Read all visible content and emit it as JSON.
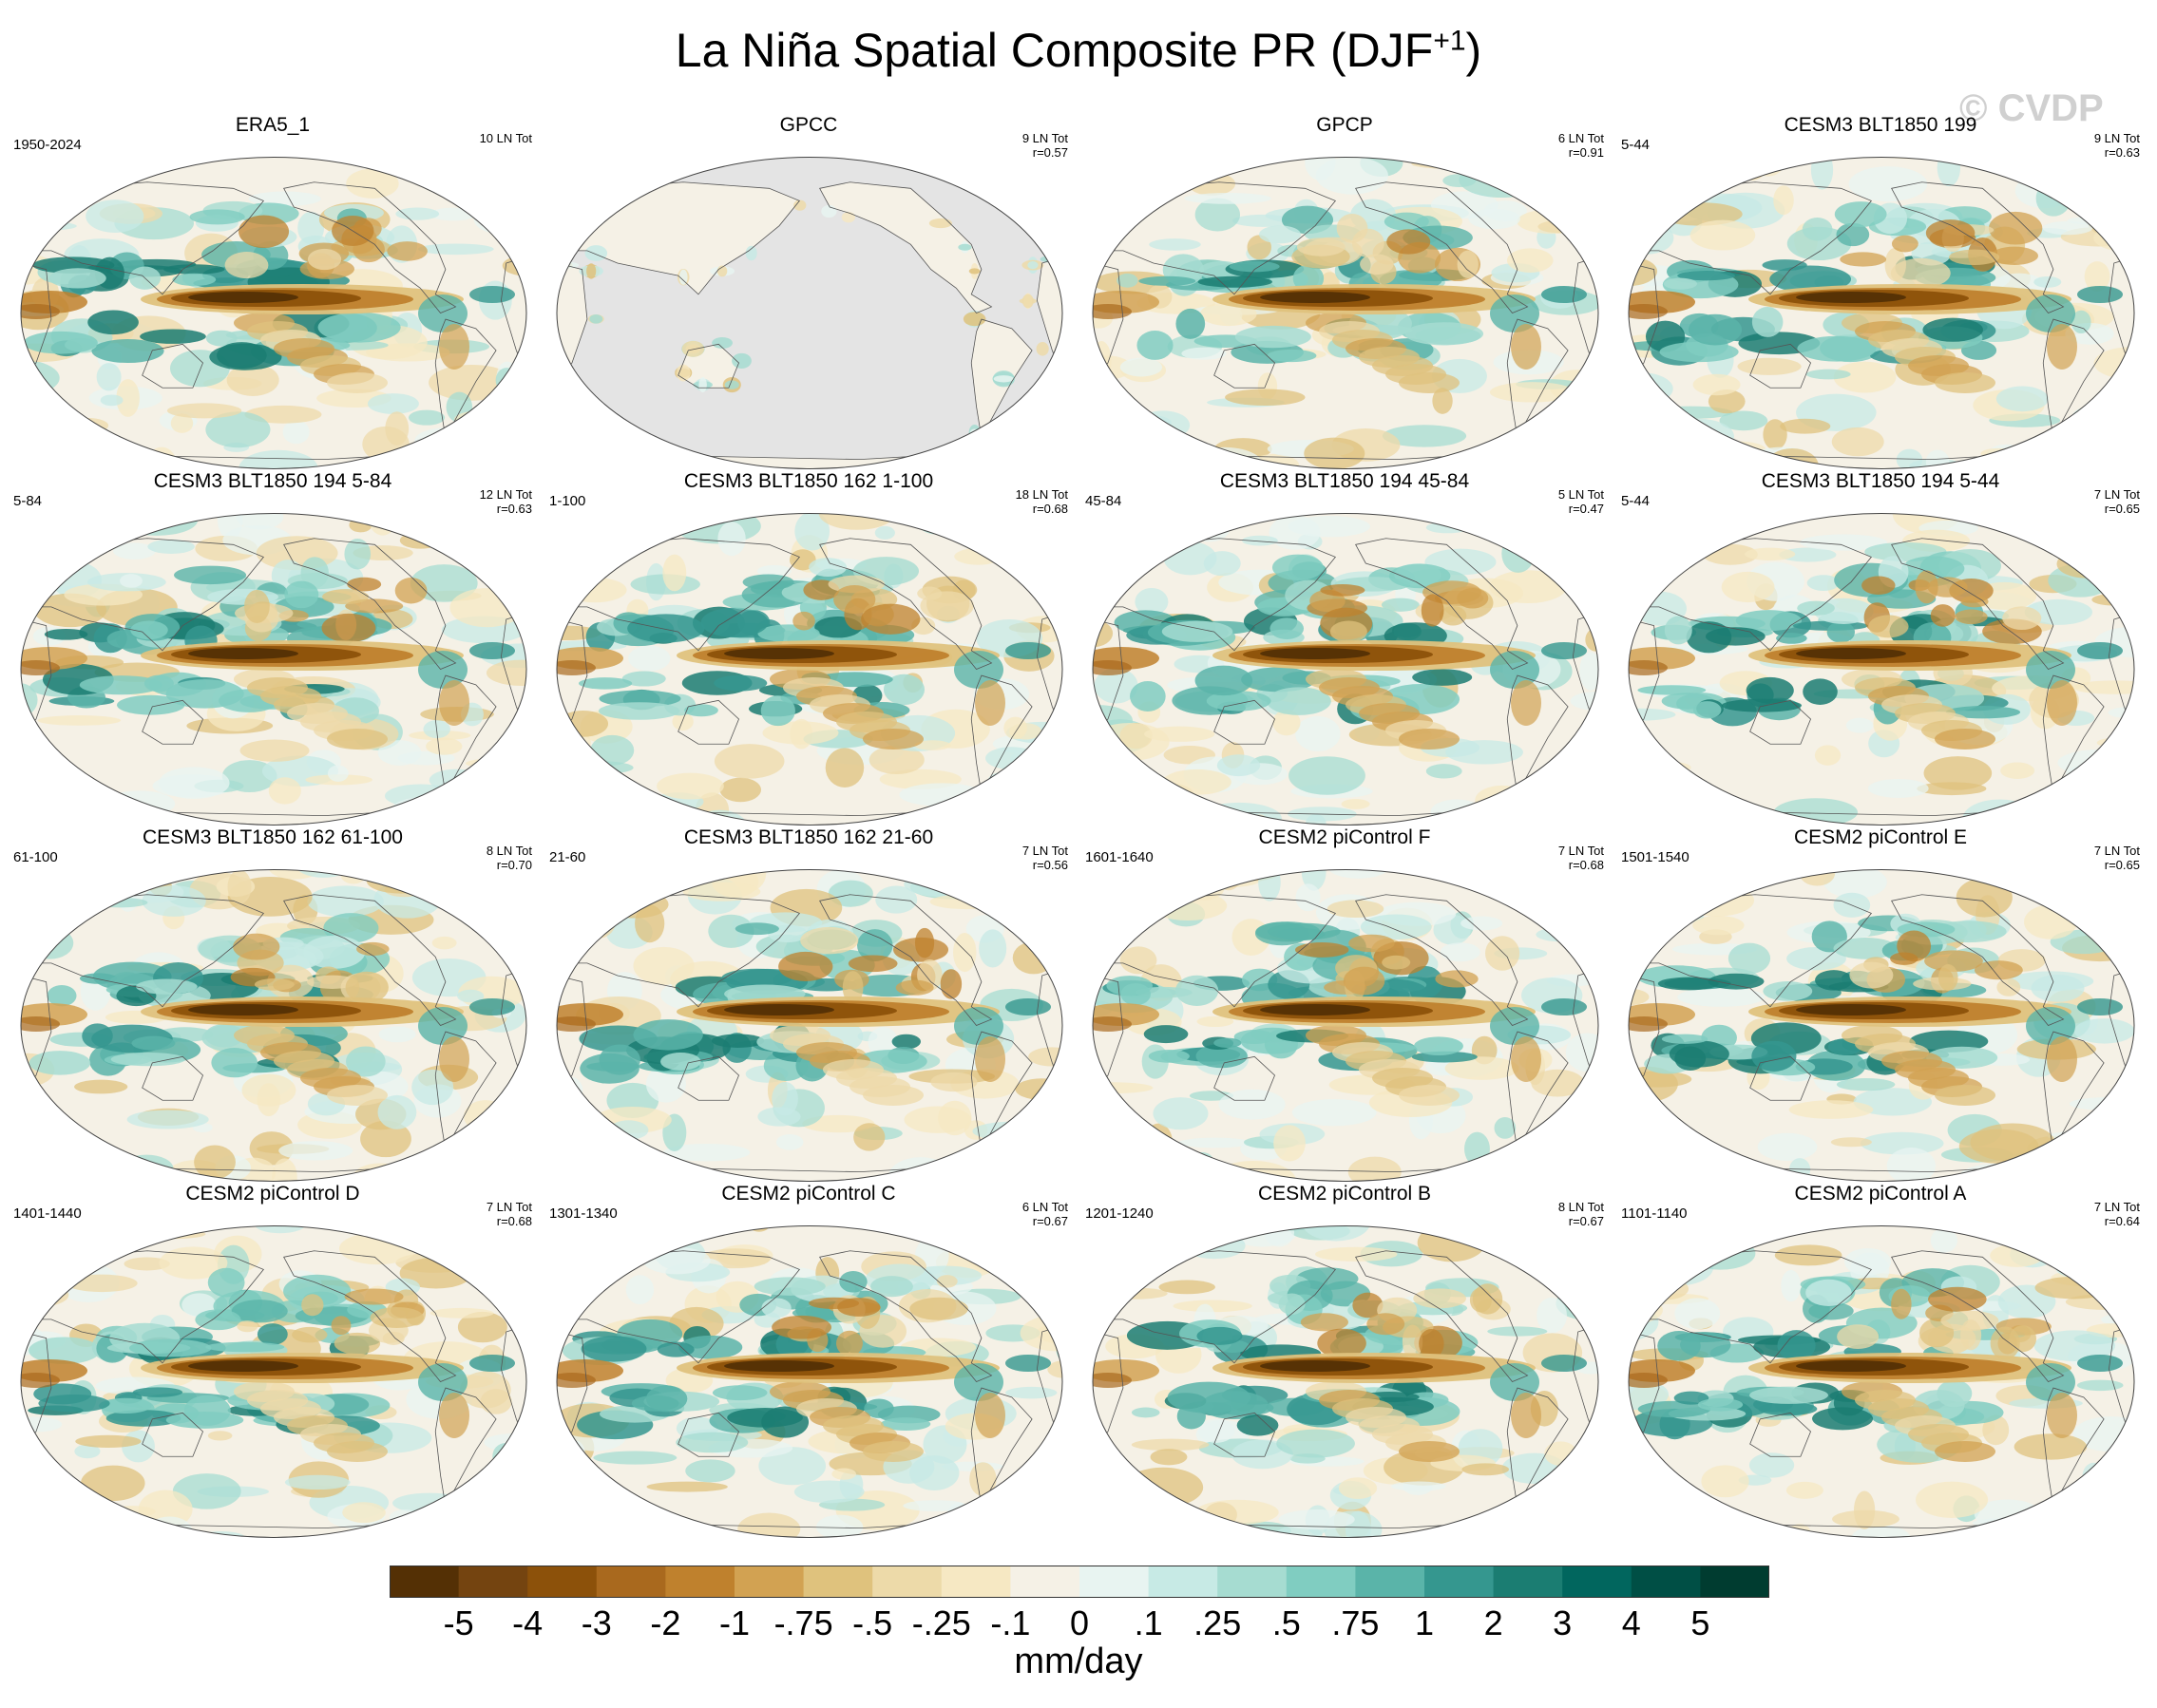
{
  "title_main": "La Niña Spatial Composite PR (DJF",
  "title_sup": "+1",
  "title_close": ")",
  "watermark": "© CVDP",
  "units": "mm/day",
  "colorbar": {
    "labels": [
      "-5",
      "-4",
      "-3",
      "-2",
      "-1",
      "-.75",
      "-.5",
      "-.25",
      "-.1",
      "0",
      ".1",
      ".25",
      ".5",
      ".75",
      "1",
      "2",
      "3",
      "4",
      "5"
    ],
    "colors": [
      "#543005",
      "#744410",
      "#8c510a",
      "#a9691e",
      "#bf812d",
      "#d2a252",
      "#dfc27d",
      "#eddaa9",
      "#f6e8c3",
      "#f5f1e6",
      "#e8f4f1",
      "#c7eae5",
      "#a6dcd1",
      "#80cdc1",
      "#5ab4a9",
      "#35978f",
      "#1b7d72",
      "#01665e",
      "#004f45",
      "#003c30"
    ]
  },
  "chart_data": {
    "type": "heatmap",
    "title": "La Niña Spatial Composite PR (DJF+1)",
    "variable": "PR",
    "units": "mm/day",
    "contour_levels": [
      -5,
      -4,
      -3,
      -2,
      -1,
      -0.75,
      -0.5,
      -0.25,
      -0.1,
      0,
      0.1,
      0.25,
      0.5,
      0.75,
      1,
      2,
      3,
      4,
      5
    ],
    "panels": [
      {
        "name": "ERA5_1",
        "years": "1950-2024",
        "events": "10 LN Tot",
        "r": "",
        "mode": "full"
      },
      {
        "name": "GPCC",
        "years": "",
        "events": "9 LN Tot",
        "r": "r=0.57",
        "mode": "land"
      },
      {
        "name": "GPCP",
        "years": "",
        "events": "6 LN Tot",
        "r": "r=0.91",
        "mode": "full"
      },
      {
        "name": "CESM3 BLT1850 199",
        "years": "5-44",
        "events": "9 LN Tot",
        "r": "r=0.63",
        "mode": "full"
      },
      {
        "name": "CESM3 BLT1850 194 5-84",
        "years": "5-84",
        "events": "12 LN Tot",
        "r": "r=0.63",
        "mode": "full"
      },
      {
        "name": "CESM3 BLT1850 162 1-100",
        "years": "1-100",
        "events": "18 LN Tot",
        "r": "r=0.68",
        "mode": "full"
      },
      {
        "name": "CESM3 BLT1850 194 45-84",
        "years": "45-84",
        "events": "5 LN Tot",
        "r": "r=0.47",
        "mode": "full"
      },
      {
        "name": "CESM3 BLT1850 194 5-44",
        "years": "5-44",
        "events": "7 LN Tot",
        "r": "r=0.65",
        "mode": "full"
      },
      {
        "name": "CESM3 BLT1850 162 61-100",
        "years": "61-100",
        "events": "8 LN Tot",
        "r": "r=0.70",
        "mode": "full"
      },
      {
        "name": "CESM3 BLT1850 162 21-60",
        "years": "21-60",
        "events": "7 LN Tot",
        "r": "r=0.56",
        "mode": "full"
      },
      {
        "name": "CESM2 piControl F",
        "years": "1601-1640",
        "events": "7 LN Tot",
        "r": "r=0.68",
        "mode": "full"
      },
      {
        "name": "CESM2 piControl E",
        "years": "1501-1540",
        "events": "7 LN Tot",
        "r": "r=0.65",
        "mode": "full"
      },
      {
        "name": "CESM2 piControl D",
        "years": "1401-1440",
        "events": "7 LN Tot",
        "r": "r=0.68",
        "mode": "full"
      },
      {
        "name": "CESM2 piControl C",
        "years": "1301-1340",
        "events": "6 LN Tot",
        "r": "r=0.67",
        "mode": "full"
      },
      {
        "name": "CESM2 piControl B",
        "years": "1201-1240",
        "events": "8 LN Tot",
        "r": "r=0.67",
        "mode": "full"
      },
      {
        "name": "CESM2 piControl A",
        "years": "1101-1140",
        "events": "7 LN Tot",
        "r": "r=0.64",
        "mode": "full"
      }
    ]
  }
}
